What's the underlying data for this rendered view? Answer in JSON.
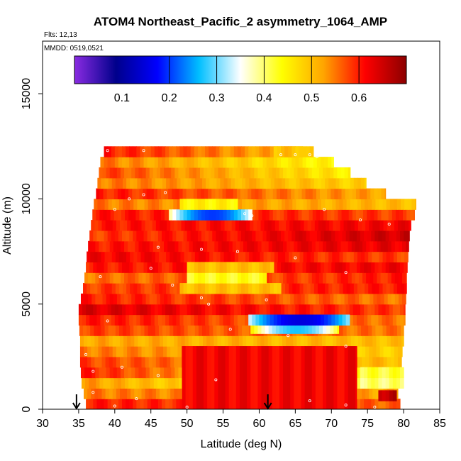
{
  "chart_data": {
    "type": "heatmap",
    "title": "ATOM4 Northeast_Pacific_2 asymmetry_1064_AMP",
    "flights_label": "Flts: 12,13",
    "dates_label": "MMDD: 0519,0521",
    "xlabel": "Latitude (deg N)",
    "ylabel": "Altitude (m)",
    "xlim": [
      30,
      85
    ],
    "ylim": [
      0,
      17500
    ],
    "x_ticks": [
      30,
      35,
      40,
      45,
      50,
      55,
      60,
      65,
      70,
      75,
      80,
      85
    ],
    "y_ticks": [
      0,
      5000,
      10000,
      15000
    ],
    "colorbar": {
      "range": [
        0.0,
        0.7
      ],
      "ticks": [
        0.1,
        0.2,
        0.3,
        0.4,
        0.5,
        0.6
      ],
      "colors": [
        "#8a2be2",
        "#00008b",
        "#0000ff",
        "#00bfff",
        "#ffffff",
        "#ffff00",
        "#ffa500",
        "#ff0000",
        "#8b0000"
      ]
    },
    "arrow_markers_lat": [
      34.7,
      61.2
    ],
    "layers": [
      {
        "alt_bottom": 0,
        "alt_top": 500,
        "lat_start": 36.0,
        "lat_end": 79.5,
        "value_start": 0.6,
        "value_end": 0.56
      },
      {
        "alt_bottom": 500,
        "alt_top": 1000,
        "lat_start": 35.7,
        "lat_end": 79.2,
        "value_start": 0.55,
        "value_end": 0.52
      },
      {
        "alt_bottom": 1000,
        "alt_top": 1500,
        "lat_start": 35.4,
        "lat_end": 79.0,
        "value_start": 0.53,
        "value_end": 0.38
      },
      {
        "alt_bottom": 1500,
        "alt_top": 2000,
        "lat_start": 35.3,
        "lat_end": 79.5,
        "value_start": 0.6,
        "value_end": 0.4
      },
      {
        "alt_bottom": 2000,
        "alt_top": 2500,
        "lat_start": 35.2,
        "lat_end": 79.7,
        "value_start": 0.58,
        "value_end": 0.5
      },
      {
        "alt_bottom": 2500,
        "alt_top": 3000,
        "lat_start": 35.2,
        "lat_end": 79.8,
        "value_start": 0.55,
        "value_end": 0.48
      },
      {
        "alt_bottom": 3000,
        "alt_top": 3500,
        "lat_start": 35.2,
        "lat_end": 80.0,
        "value_start": 0.52,
        "value_end": 0.5
      },
      {
        "alt_bottom": 3500,
        "alt_top": 4000,
        "lat_start": 35.1,
        "lat_end": 80.0,
        "value_start": 0.58,
        "value_end": 0.55
      },
      {
        "alt_bottom": 4000,
        "alt_top": 4500,
        "lat_start": 35.0,
        "lat_end": 80.2,
        "value_start": 0.6,
        "value_end": 0.55
      },
      {
        "alt_bottom": 4500,
        "alt_top": 5000,
        "lat_start": 35.0,
        "lat_end": 80.2,
        "value_start": 0.64,
        "value_end": 0.58
      },
      {
        "alt_bottom": 5000,
        "alt_top": 5500,
        "lat_start": 35.3,
        "lat_end": 80.3,
        "value_start": 0.6,
        "value_end": 0.55
      },
      {
        "alt_bottom": 5500,
        "alt_top": 6000,
        "lat_start": 35.6,
        "lat_end": 80.4,
        "value_start": 0.58,
        "value_end": 0.6
      },
      {
        "alt_bottom": 6000,
        "alt_top": 6500,
        "lat_start": 35.8,
        "lat_end": 80.4,
        "value_start": 0.55,
        "value_end": 0.6
      },
      {
        "alt_bottom": 6500,
        "alt_top": 7000,
        "lat_start": 36.0,
        "lat_end": 80.5,
        "value_start": 0.6,
        "value_end": 0.62
      },
      {
        "alt_bottom": 7000,
        "alt_top": 7500,
        "lat_start": 36.1,
        "lat_end": 80.6,
        "value_start": 0.62,
        "value_end": 0.58
      },
      {
        "alt_bottom": 7500,
        "alt_top": 8000,
        "lat_start": 36.3,
        "lat_end": 80.7,
        "value_start": 0.6,
        "value_end": 0.63
      },
      {
        "alt_bottom": 8000,
        "alt_top": 8500,
        "lat_start": 36.5,
        "lat_end": 80.8,
        "value_start": 0.58,
        "value_end": 0.65
      },
      {
        "alt_bottom": 8500,
        "alt_top": 9000,
        "lat_start": 36.7,
        "lat_end": 81.0,
        "value_start": 0.6,
        "value_end": 0.62
      },
      {
        "alt_bottom": 9000,
        "alt_top": 9500,
        "lat_start": 36.9,
        "lat_end": 81.5,
        "value_start": 0.6,
        "value_end": 0.58
      },
      {
        "alt_bottom": 9500,
        "alt_top": 10000,
        "lat_start": 37.1,
        "lat_end": 81.7,
        "value_start": 0.55,
        "value_end": 0.5
      },
      {
        "alt_bottom": 10000,
        "alt_top": 10500,
        "lat_start": 37.4,
        "lat_end": 77.5,
        "value_start": 0.6,
        "value_end": 0.52
      },
      {
        "alt_bottom": 10500,
        "alt_top": 11000,
        "lat_start": 37.6,
        "lat_end": 74.8,
        "value_start": 0.55,
        "value_end": 0.48
      },
      {
        "alt_bottom": 11000,
        "alt_top": 11500,
        "lat_start": 37.8,
        "lat_end": 72.6,
        "value_start": 0.58,
        "value_end": 0.45
      },
      {
        "alt_bottom": 11500,
        "alt_top": 12000,
        "lat_start": 38.0,
        "lat_end": 70.3,
        "value_start": 0.55,
        "value_end": 0.44
      },
      {
        "alt_bottom": 12000,
        "alt_top": 12500,
        "lat_start": 38.5,
        "lat_end": 67.5,
        "value_start": 0.6,
        "value_end": 0.5
      }
    ],
    "overlays": [
      {
        "alt_bottom": 0,
        "alt_top": 3000,
        "lat_start": 49.3,
        "lat_end": 73.5,
        "value": 0.62
      },
      {
        "alt_bottom": 1000,
        "alt_top": 1500,
        "lat_start": 74.0,
        "lat_end": 80.0,
        "value": 0.4
      },
      {
        "alt_bottom": 1500,
        "alt_top": 2000,
        "lat_start": 74.0,
        "lat_end": 80.0,
        "value": 0.42
      },
      {
        "alt_bottom": 400,
        "alt_top": 900,
        "lat_start": 76.5,
        "lat_end": 79.0,
        "value": 0.66
      },
      {
        "alt_bottom": 3600,
        "alt_top": 4000,
        "lat_start": 58.8,
        "lat_end": 71.0,
        "value": 0.27
      },
      {
        "alt_bottom": 4000,
        "alt_top": 4500,
        "lat_start": 58.5,
        "lat_end": 72.5,
        "value": 0.15
      },
      {
        "alt_bottom": 5500,
        "alt_top": 6000,
        "lat_start": 49.0,
        "lat_end": 63.0,
        "value": 0.5
      },
      {
        "alt_bottom": 6000,
        "alt_top": 6500,
        "lat_start": 50.0,
        "lat_end": 61.0,
        "value": 0.43
      },
      {
        "alt_bottom": 6500,
        "alt_top": 7000,
        "lat_start": 50.0,
        "lat_end": 62.0,
        "value": 0.5
      },
      {
        "alt_bottom": 9000,
        "alt_top": 9500,
        "lat_start": 47.5,
        "lat_end": 59.0,
        "value": 0.2
      },
      {
        "alt_bottom": 9500,
        "alt_top": 10000,
        "lat_start": 49.0,
        "lat_end": 57.0,
        "value": 0.45
      },
      {
        "alt_bottom": 12000,
        "alt_top": 12500,
        "lat_start": 62.0,
        "lat_end": 66.0,
        "value": 0.5
      }
    ],
    "sample_points": [
      [
        39,
        12300
      ],
      [
        44,
        12300
      ],
      [
        63,
        12100
      ],
      [
        65,
        12100
      ],
      [
        67,
        12100
      ],
      [
        68,
        12000
      ],
      [
        42,
        10000
      ],
      [
        44,
        10200
      ],
      [
        47,
        10300
      ],
      [
        40,
        9500
      ],
      [
        58,
        9300
      ],
      [
        59,
        9200
      ],
      [
        74,
        9000
      ],
      [
        78,
        8800
      ],
      [
        46,
        7700
      ],
      [
        52,
        7600
      ],
      [
        57,
        7500
      ],
      [
        65,
        7200
      ],
      [
        45,
        6700
      ],
      [
        38,
        6300
      ],
      [
        72,
        6500
      ],
      [
        48,
        5900
      ],
      [
        52,
        5300
      ],
      [
        53,
        5000
      ],
      [
        39,
        4200
      ],
      [
        56,
        3800
      ],
      [
        64,
        3500
      ],
      [
        72,
        3000
      ],
      [
        41,
        2000
      ],
      [
        46,
        1600
      ],
      [
        54,
        1400
      ],
      [
        37,
        800
      ],
      [
        43,
        500
      ],
      [
        67,
        400
      ],
      [
        72,
        200
      ],
      [
        76,
        100
      ],
      [
        50,
        100
      ],
      [
        40,
        150
      ],
      [
        37,
        1800
      ],
      [
        36,
        2600
      ],
      [
        61,
        5200
      ],
      [
        69,
        9500
      ]
    ]
  }
}
